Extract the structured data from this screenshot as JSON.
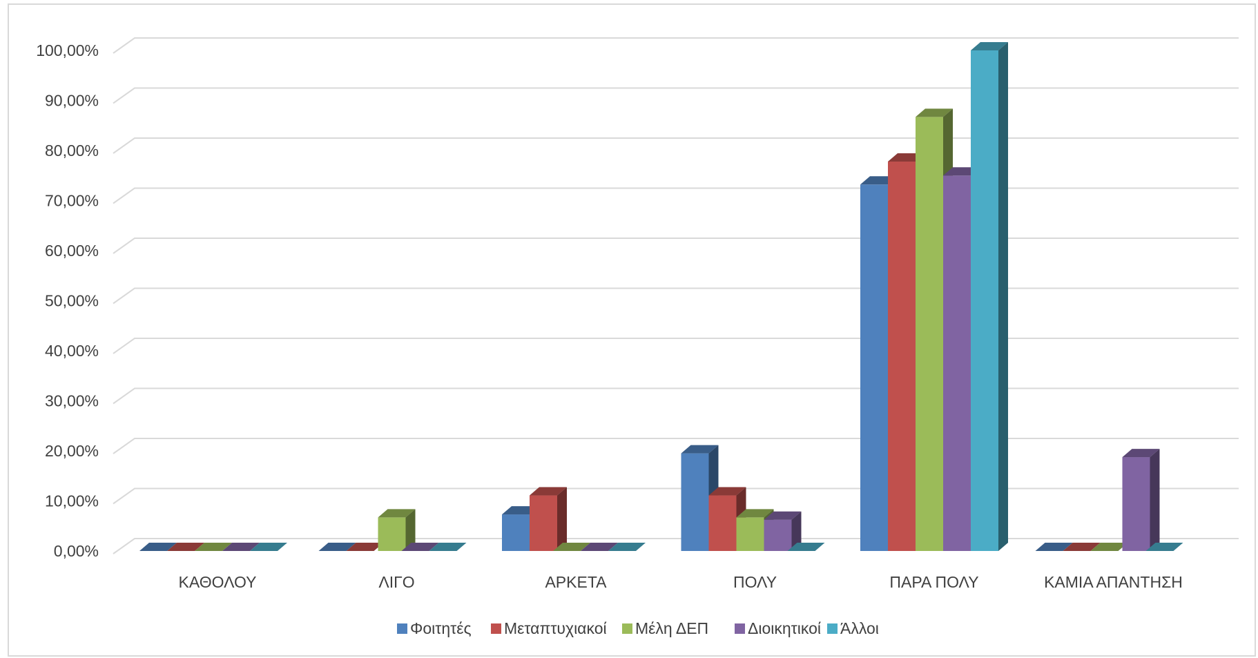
{
  "chart_data": {
    "type": "bar",
    "style": "3d-clustered-column",
    "categories": [
      "ΚΑΘΟΛΟΥ",
      "ΛΙΓΟ",
      "ΑΡΚΕΤΑ",
      "ΠΟΛΥ",
      "ΠΑΡΑ ΠΟΛΥ",
      "ΚΑΜΙΑ ΑΠΑΝΤΗΣΗ"
    ],
    "series": [
      {
        "name": "Φοιτητές",
        "color": "#4f81bd",
        "values": [
          0,
          0,
          7.3,
          19.5,
          73.2,
          0
        ]
      },
      {
        "name": "Μεταπτυχιακοί",
        "color": "#c0504d",
        "values": [
          0,
          0,
          11.1,
          11.1,
          77.8,
          0
        ]
      },
      {
        "name": "Μέλη ΔΕΠ",
        "color": "#9bbb59",
        "values": [
          0,
          6.7,
          0,
          6.7,
          86.7,
          0
        ]
      },
      {
        "name": "Διοικητικοί",
        "color": "#8064a2",
        "values": [
          0,
          0,
          0,
          6.25,
          75.0,
          18.75
        ]
      },
      {
        "name": "Άλλοι",
        "color": "#4bacc6",
        "values": [
          0,
          0,
          0,
          0,
          100,
          0
        ]
      }
    ],
    "ylim": [
      0,
      100
    ],
    "yticks": [
      {
        "value": 0,
        "label": "0,00%"
      },
      {
        "value": 10,
        "label": "10,00%"
      },
      {
        "value": 20,
        "label": "20,00%"
      },
      {
        "value": 30,
        "label": "30,00%"
      },
      {
        "value": 40,
        "label": "40,00%"
      },
      {
        "value": 50,
        "label": "50,00%"
      },
      {
        "value": 60,
        "label": "60,00%"
      },
      {
        "value": 70,
        "label": "70,00%"
      },
      {
        "value": 80,
        "label": "80,00%"
      },
      {
        "value": 90,
        "label": "90,00%"
      },
      {
        "value": 100,
        "label": "100,00%"
      }
    ],
    "grid": true,
    "legend_position": "bottom"
  }
}
